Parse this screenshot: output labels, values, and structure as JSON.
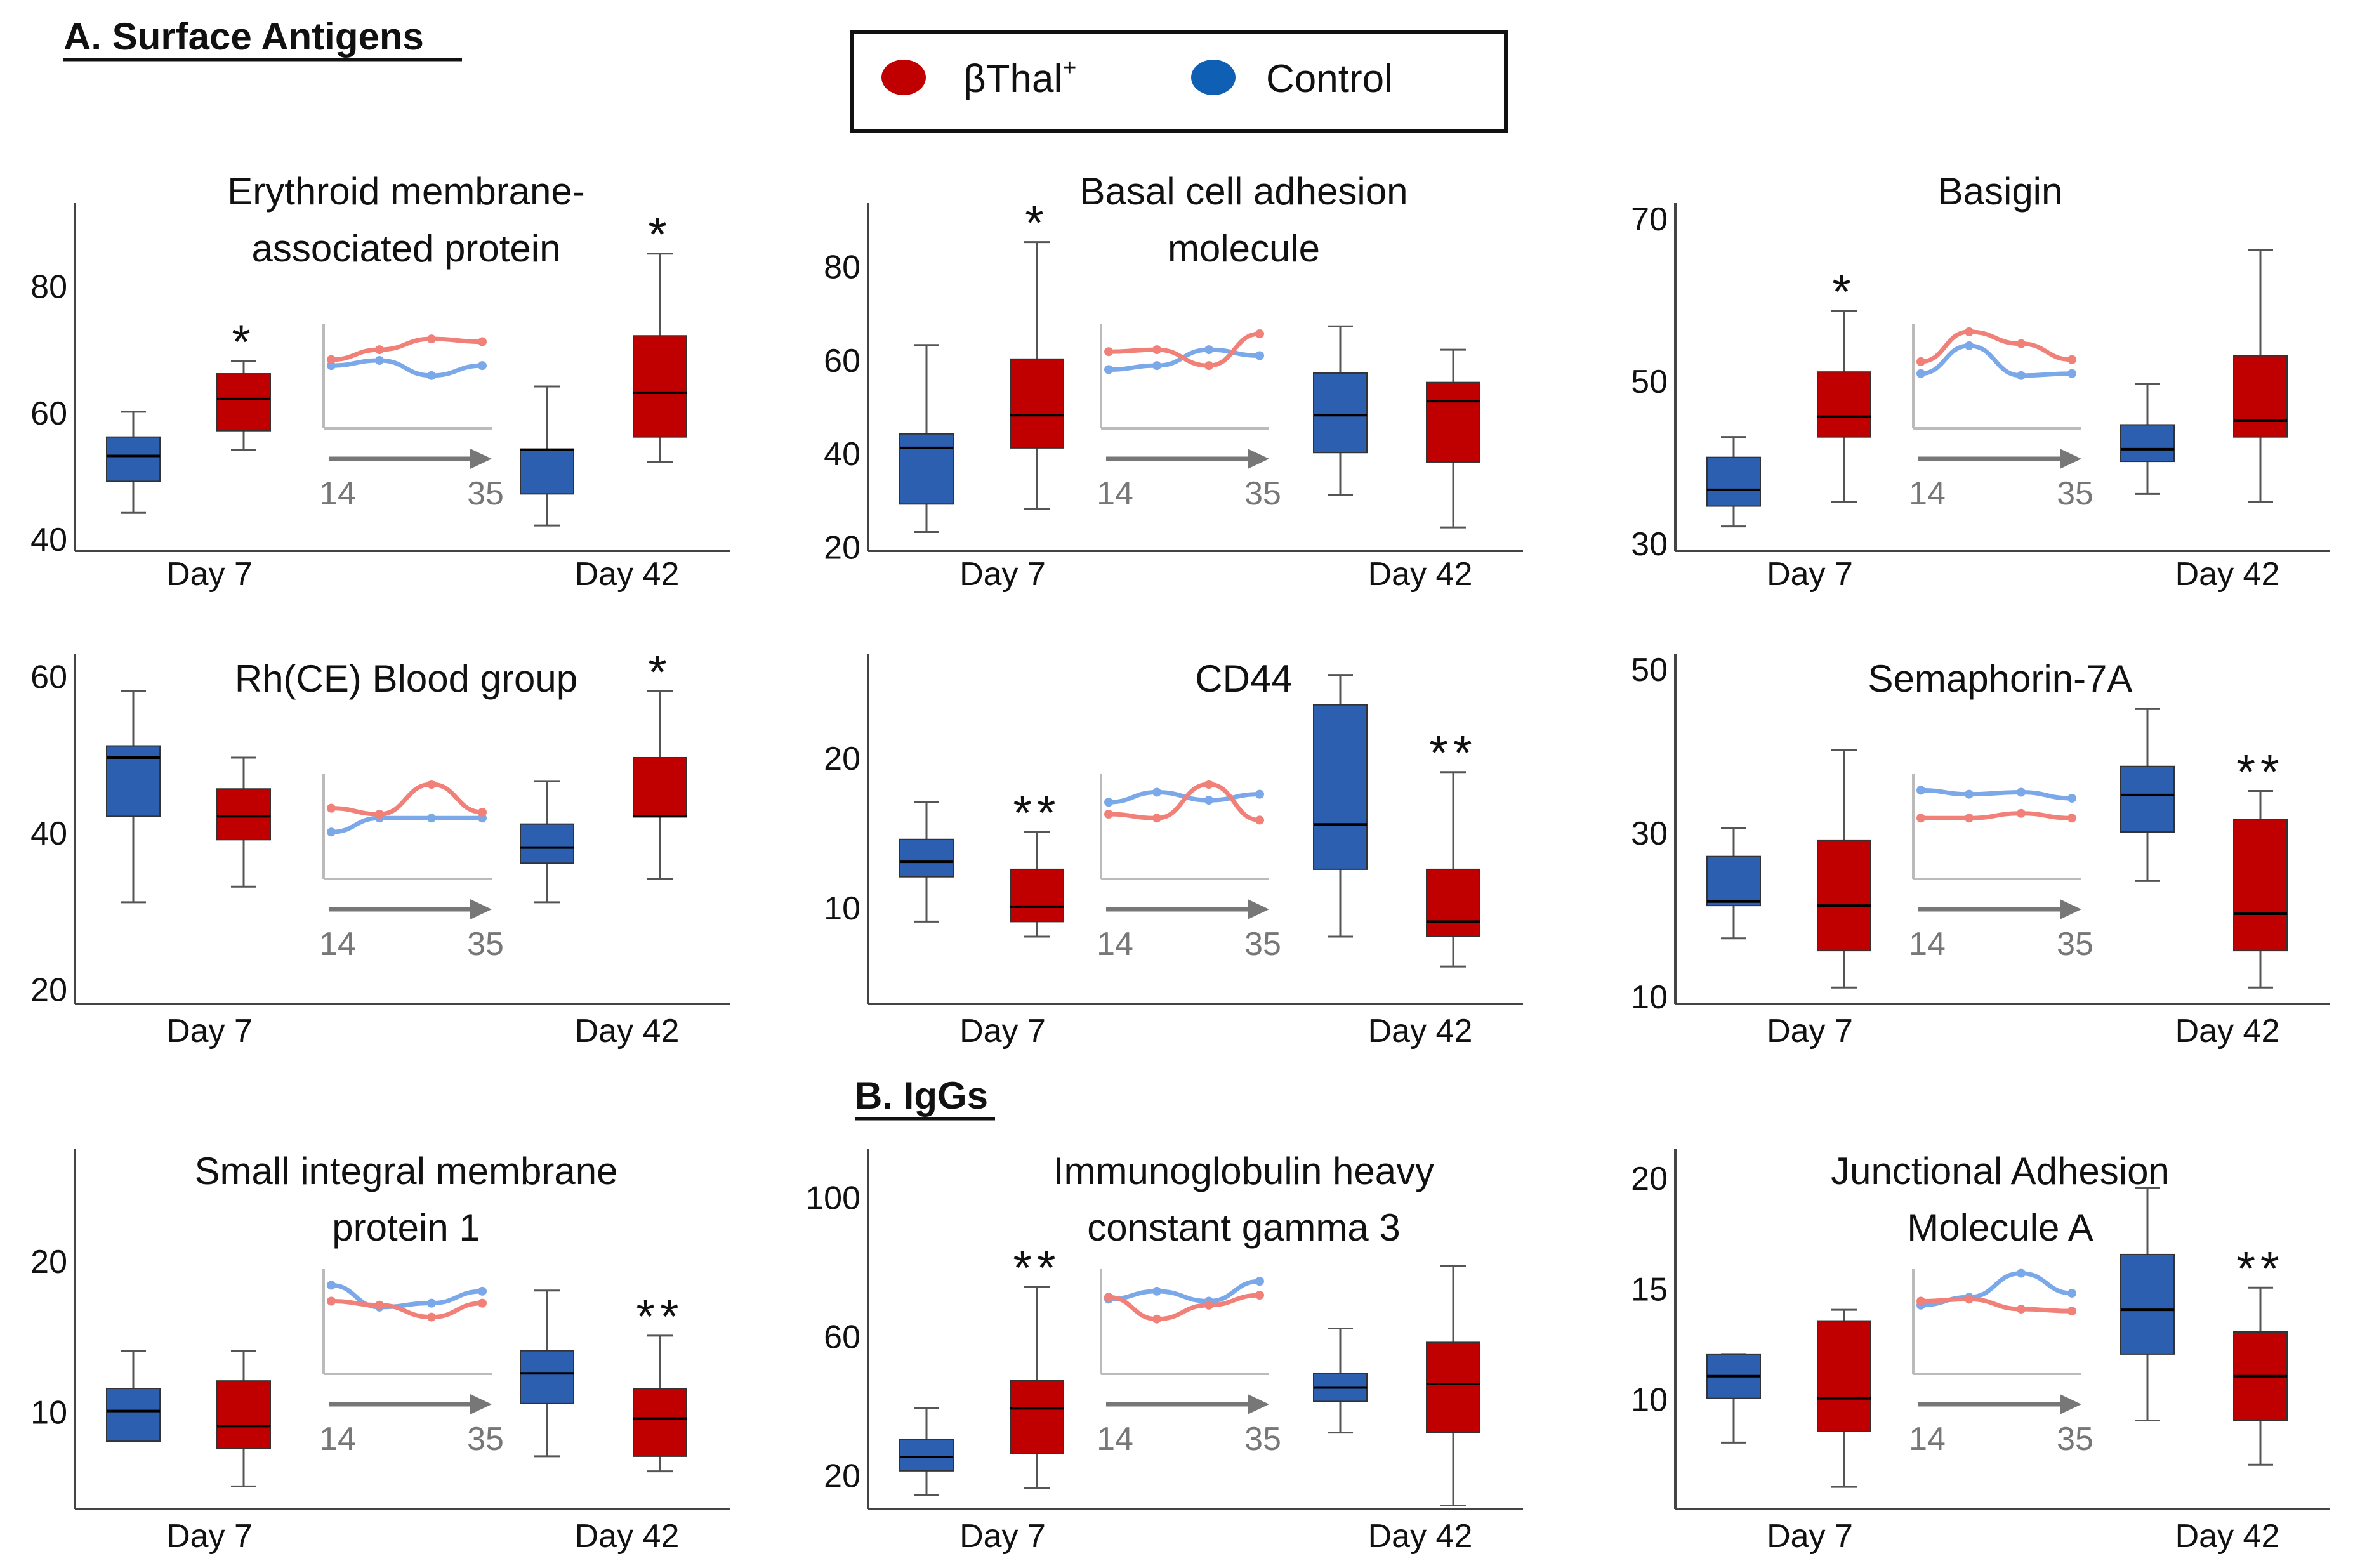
{
  "section_a_label": "A. Surface Antigens",
  "section_b_label": "B. IgGs",
  "legend": {
    "entries": [
      {
        "label": "βThal",
        "superscript": "+",
        "color": "#c00000"
      },
      {
        "label": "Control",
        "superscript": "",
        "color": "#0f5fb5"
      }
    ]
  },
  "colors": {
    "bthal_box": "#c00000",
    "control_box": "#2d5fb0",
    "bthal_line": "#f08078",
    "control_line": "#7aa8e8",
    "axis": "#444444",
    "inset_axis": "#bbbbbb",
    "arrow": "#777777",
    "inset_text": "#777777"
  },
  "chart_data": [
    {
      "type": "boxplot",
      "title": [
        "Erythroid membrane-",
        "associated protein"
      ],
      "yticks": [
        40,
        60,
        80
      ],
      "ylim": [
        38,
        92
      ],
      "xlabels": [
        "Day 7",
        "Day 42"
      ],
      "boxes": [
        {
          "group": "Control",
          "day": "Day 7",
          "min": 44,
          "q1": 49,
          "median": 53,
          "q3": 56,
          "max": 60
        },
        {
          "group": "βThal+",
          "day": "Day 7",
          "min": 54,
          "q1": 57,
          "median": 62,
          "q3": 66,
          "max": 68,
          "sig": "*"
        },
        {
          "group": "Control",
          "day": "Day 42",
          "min": 42,
          "q1": 47,
          "median": 54,
          "q3": 54,
          "max": 64
        },
        {
          "group": "βThal+",
          "day": "Day 42",
          "min": 52,
          "q1": 56,
          "median": 63,
          "q3": 72,
          "max": 85,
          "sig": "*"
        }
      ],
      "inset": {
        "x_range": [
          "14",
          "35"
        ],
        "bthal": [
          0.2,
          0.45,
          0.72,
          0.65
        ],
        "control": [
          0.05,
          0.18,
          -0.2,
          0.05
        ]
      }
    },
    {
      "type": "boxplot",
      "title": [
        "Basal cell adhesion",
        "molecule"
      ],
      "yticks": [
        20,
        40,
        60,
        80
      ],
      "ylim": [
        19,
        92
      ],
      "xlabels": [
        "Day 7",
        "Day 42"
      ],
      "boxes": [
        {
          "group": "Control",
          "day": "Day 7",
          "min": 23,
          "q1": 29,
          "median": 41,
          "q3": 44,
          "max": 63
        },
        {
          "group": "βThal+",
          "day": "Day 7",
          "min": 28,
          "q1": 41,
          "median": 48,
          "q3": 60,
          "max": 85,
          "sig": "*"
        },
        {
          "group": "Control",
          "day": "Day 42",
          "min": 31,
          "q1": 40,
          "median": 48,
          "q3": 57,
          "max": 67
        },
        {
          "group": "βThal+",
          "day": "Day 42",
          "min": 24,
          "q1": 38,
          "median": 51,
          "q3": 55,
          "max": 62
        }
      ],
      "inset": {
        "x_range": [
          "14",
          "35"
        ],
        "bthal": [
          0.4,
          0.45,
          0.05,
          0.85
        ],
        "control": [
          -0.05,
          0.05,
          0.45,
          0.3
        ]
      }
    },
    {
      "type": "boxplot",
      "title": [
        "Basigin"
      ],
      "yticks": [
        30,
        50,
        70
      ],
      "ylim": [
        29,
        71
      ],
      "xlabels": [
        "Day 7",
        "Day 42"
      ],
      "boxes": [
        {
          "group": "Control",
          "day": "Day 7",
          "min": 32,
          "q1": 34.5,
          "median": 36.5,
          "q3": 40.5,
          "max": 43
        },
        {
          "group": "βThal+",
          "day": "Day 7",
          "min": 35,
          "q1": 43,
          "median": 45.5,
          "q3": 51,
          "max": 58.5,
          "sig": "*"
        },
        {
          "group": "Control",
          "day": "Day 42",
          "min": 36,
          "q1": 40,
          "median": 41.5,
          "q3": 44.5,
          "max": 49.5
        },
        {
          "group": "βThal+",
          "day": "Day 42",
          "min": 35,
          "q1": 43,
          "median": 45,
          "q3": 53,
          "max": 66
        }
      ],
      "inset": {
        "x_range": [
          "14",
          "35"
        ],
        "bthal": [
          0.15,
          0.9,
          0.6,
          0.2
        ],
        "control": [
          -0.15,
          0.55,
          -0.2,
          -0.15
        ]
      }
    },
    {
      "type": "boxplot",
      "title": [
        "Rh(CE) Blood group"
      ],
      "yticks": [
        20,
        40,
        60
      ],
      "ylim": [
        18,
        62
      ],
      "xlabels": [
        "Day 7",
        "Day 42"
      ],
      "boxes": [
        {
          "group": "Control",
          "day": "Day 7",
          "min": 31,
          "q1": 42,
          "median": 49.5,
          "q3": 51,
          "max": 58
        },
        {
          "group": "βThal+",
          "day": "Day 7",
          "min": 33,
          "q1": 39,
          "median": 42,
          "q3": 45.5,
          "max": 49.5
        },
        {
          "group": "Control",
          "day": "Day 42",
          "min": 31,
          "q1": 36,
          "median": 38,
          "q3": 41,
          "max": 46.5
        },
        {
          "group": "βThal+",
          "day": "Day 42",
          "min": 34,
          "q1": 42,
          "median": 42,
          "q3": 49.5,
          "max": 58,
          "sig": "*"
        }
      ],
      "inset": {
        "x_range": [
          "14",
          "35"
        ],
        "bthal": [
          0.25,
          0.1,
          0.85,
          0.15
        ],
        "control": [
          -0.35,
          0.0,
          0.0,
          0.0
        ]
      }
    },
    {
      "type": "boxplot",
      "title": [
        "CD44"
      ],
      "yticks": [
        10,
        20
      ],
      "ylim": [
        3.5,
        26.5
      ],
      "xlabels": [
        "Day 7",
        "Day 42"
      ],
      "boxes": [
        {
          "group": "Control",
          "day": "Day 7",
          "min": 9,
          "q1": 12,
          "median": 13,
          "q3": 14.5,
          "max": 17
        },
        {
          "group": "βThal+",
          "day": "Day 7",
          "min": 8,
          "q1": 9,
          "median": 10,
          "q3": 12.5,
          "max": 15,
          "sig": "**"
        },
        {
          "group": "Control",
          "day": "Day 42",
          "min": 8,
          "q1": 12.5,
          "median": 15.5,
          "q3": 23.5,
          "max": 25.5
        },
        {
          "group": "βThal+",
          "day": "Day 42",
          "min": 6,
          "q1": 8,
          "median": 9,
          "q3": 12.5,
          "max": 19,
          "sig": "**"
        }
      ],
      "inset": {
        "x_range": [
          "14",
          "35"
        ],
        "bthal": [
          0.1,
          0.0,
          0.85,
          -0.05
        ],
        "control": [
          0.4,
          0.65,
          0.45,
          0.6
        ]
      }
    },
    {
      "type": "boxplot",
      "title": [
        "Semaphorin-7A"
      ],
      "yticks": [
        10,
        30,
        50
      ],
      "ylim": [
        9,
        51
      ],
      "xlabels": [
        "Day 7",
        "Day 42"
      ],
      "boxes": [
        {
          "group": "Control",
          "day": "Day 7",
          "min": 17,
          "q1": 21,
          "median": 21.5,
          "q3": 27,
          "max": 30.5
        },
        {
          "group": "βThal+",
          "day": "Day 7",
          "min": 11,
          "q1": 15.5,
          "median": 21,
          "q3": 29,
          "max": 40
        },
        {
          "group": "Control",
          "day": "Day 42",
          "min": 24,
          "q1": 30,
          "median": 34.5,
          "q3": 38,
          "max": 45
        },
        {
          "group": "βThal+",
          "day": "Day 42",
          "min": 11,
          "q1": 15.5,
          "median": 20,
          "q3": 31.5,
          "max": 35,
          "sig": "**"
        }
      ],
      "inset": {
        "x_range": [
          "14",
          "35"
        ],
        "bthal": [
          0.0,
          0.0,
          0.12,
          0.0
        ],
        "control": [
          0.7,
          0.6,
          0.65,
          0.5
        ]
      }
    },
    {
      "type": "boxplot",
      "title": [
        "Small integral membrane",
        "protein 1"
      ],
      "yticks": [
        10,
        20
      ],
      "ylim": [
        3.5,
        27
      ],
      "xlabels": [
        "Day 7",
        "Day 42"
      ],
      "boxes": [
        {
          "group": "Control",
          "day": "Day 7",
          "min": 8,
          "q1": 8,
          "median": 10,
          "q3": 11.5,
          "max": 14
        },
        {
          "group": "βThal+",
          "day": "Day 7",
          "min": 5,
          "q1": 7.5,
          "median": 9,
          "q3": 12,
          "max": 14
        },
        {
          "group": "Control",
          "day": "Day 42",
          "min": 7,
          "q1": 10.5,
          "median": 12.5,
          "q3": 14,
          "max": 18
        },
        {
          "group": "βThal+",
          "day": "Day 42",
          "min": 6,
          "q1": 7,
          "median": 9.5,
          "q3": 11.5,
          "max": 15,
          "sig": "**"
        }
      ],
      "inset": {
        "x_range": [
          "14",
          "35"
        ],
        "bthal": [
          0.3,
          0.2,
          -0.1,
          0.25
        ],
        "control": [
          0.7,
          0.15,
          0.25,
          0.55
        ]
      }
    },
    {
      "type": "boxplot",
      "title": [
        "Immunoglobulin heavy",
        "constant gamma 3"
      ],
      "yticks": [
        20,
        60,
        100
      ],
      "ylim": [
        10,
        112
      ],
      "xlabels": [
        "Day 7",
        "Day 42"
      ],
      "boxes": [
        {
          "group": "Control",
          "day": "Day 7",
          "min": 14,
          "q1": 21,
          "median": 25,
          "q3": 30,
          "max": 39
        },
        {
          "group": "βThal+",
          "day": "Day 7",
          "min": 16,
          "q1": 26,
          "median": 39,
          "q3": 47,
          "max": 74,
          "sig": "**"
        },
        {
          "group": "Control",
          "day": "Day 42",
          "min": 32,
          "q1": 41,
          "median": 45,
          "q3": 49,
          "max": 62
        },
        {
          "group": "βThal+",
          "day": "Day 42",
          "min": 11,
          "q1": 32,
          "median": 46,
          "q3": 58,
          "max": 80
        }
      ],
      "inset": {
        "x_range": [
          "14",
          "35"
        ],
        "bthal": [
          0.4,
          -0.15,
          0.2,
          0.45
        ],
        "control": [
          0.35,
          0.55,
          0.3,
          0.8
        ]
      }
    },
    {
      "type": "boxplot",
      "title": [
        "Junctional Adhesion",
        "Molecule A"
      ],
      "yticks": [
        10,
        15,
        20
      ],
      "ylim": [
        5,
        21
      ],
      "xlabels": [
        "Day 7",
        "Day 42"
      ],
      "boxes": [
        {
          "group": "Control",
          "day": "Day 7",
          "min": 8,
          "q1": 10,
          "median": 11,
          "q3": 12,
          "max": 12
        },
        {
          "group": "βThal+",
          "day": "Day 7",
          "min": 6,
          "q1": 8.5,
          "median": 10,
          "q3": 13.5,
          "max": 14
        },
        {
          "group": "Control",
          "day": "Day 42",
          "min": 9,
          "q1": 12,
          "median": 14,
          "q3": 16.5,
          "max": 19.5
        },
        {
          "group": "βThal+",
          "day": "Day 42",
          "min": 7,
          "q1": 9,
          "median": 11,
          "q3": 13,
          "max": 15,
          "sig": "**"
        }
      ],
      "inset": {
        "x_range": [
          "14",
          "35"
        ],
        "bthal": [
          0.3,
          0.35,
          0.1,
          0.05
        ],
        "control": [
          0.2,
          0.4,
          1.0,
          0.5
        ]
      }
    }
  ]
}
